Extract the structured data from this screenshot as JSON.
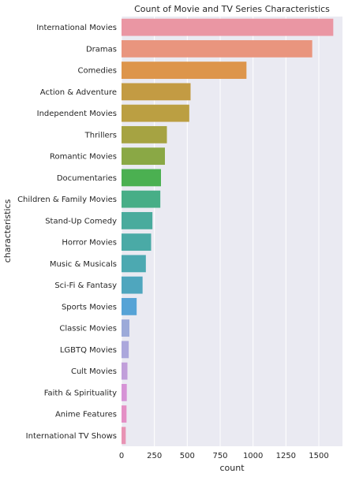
{
  "chart_data": {
    "type": "bar",
    "orientation": "horizontal",
    "title": "Count of Movie and TV Series Characteristics",
    "xlabel": "count",
    "ylabel": "characteristics",
    "xlim": [
      0,
      1680
    ],
    "xticks": [
      "0",
      "250",
      "500",
      "750",
      "1000",
      "1250",
      "1500"
    ],
    "grid": true,
    "categories": [
      "International Movies",
      "Dramas",
      "Comedies",
      "Action & Adventure",
      "Independent Movies",
      "Thrillers",
      "Romantic Movies",
      "Documentaries",
      "Children & Family Movies",
      "Stand-Up Comedy",
      "Horror Movies",
      "Music & Musicals",
      "Sci-Fi & Fantasy",
      "Sports Movies",
      "Classic Movies",
      "LGBTQ Movies",
      "Cult Movies",
      "Faith & Spirituality",
      "Anime Features",
      "International TV Shows"
    ],
    "values": [
      1610,
      1450,
      950,
      525,
      515,
      345,
      330,
      300,
      295,
      235,
      225,
      185,
      160,
      115,
      60,
      55,
      45,
      40,
      38,
      32
    ],
    "colors": [
      "#ea96a3",
      "#e9957e",
      "#dd954b",
      "#c39b43",
      "#bb9f42",
      "#a6a342",
      "#8aa845",
      "#4bb051",
      "#47ae87",
      "#49ab9d",
      "#4aaaa6",
      "#4ca9b1",
      "#4fa6be",
      "#56a3d6",
      "#9caad9",
      "#aba7dc",
      "#c19fda",
      "#d693d6",
      "#e48fc5",
      "#e893b4"
    ]
  }
}
